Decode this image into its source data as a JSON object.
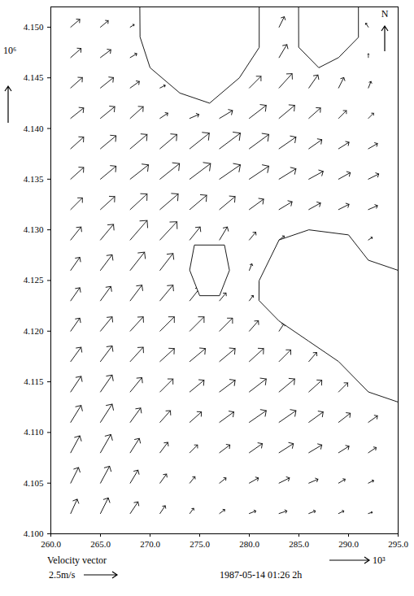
{
  "chart_data": {
    "type": "vector",
    "caption": "Velocity vector",
    "timestamp": "1987-05-14 01:26 2h",
    "x_label": "10³",
    "y_label": "10⁶",
    "north": "N",
    "reference": {
      "value": 2.5,
      "label": "2.5m/s"
    },
    "xlim": [
      260,
      295
    ],
    "xticks": [
      {
        "value": 260,
        "label": "260.0"
      },
      {
        "value": 265,
        "label": "265.0"
      },
      {
        "value": 270,
        "label": "270.0"
      },
      {
        "value": 275,
        "label": "275.0"
      },
      {
        "value": 280,
        "label": "280.0"
      },
      {
        "value": 285,
        "label": "285.0"
      },
      {
        "value": 290,
        "label": "290.0"
      },
      {
        "value": 295,
        "label": "295.0"
      }
    ],
    "ylim": [
      4.1,
      4.152
    ],
    "yticks": [
      {
        "value": 4.1,
        "label": "4.100"
      },
      {
        "value": 4.105,
        "label": "4.105"
      },
      {
        "value": 4.11,
        "label": "4.110"
      },
      {
        "value": 4.115,
        "label": "4.115"
      },
      {
        "value": 4.12,
        "label": "4.120"
      },
      {
        "value": 4.125,
        "label": "4.125"
      },
      {
        "value": 4.13,
        "label": "4.130"
      },
      {
        "value": 4.135,
        "label": "4.135"
      },
      {
        "value": 4.14,
        "label": "4.140"
      },
      {
        "value": 4.145,
        "label": "4.145"
      },
      {
        "value": 4.15,
        "label": "4.150"
      }
    ],
    "land": [
      [
        [
          269,
          4.152
        ],
        [
          281,
          4.152
        ],
        [
          281,
          4.148
        ],
        [
          279,
          4.145
        ],
        [
          276,
          4.1425
        ],
        [
          273,
          4.1435
        ],
        [
          270,
          4.146
        ],
        [
          269,
          4.149
        ]
      ],
      [
        [
          285,
          4.152
        ],
        [
          291,
          4.152
        ],
        [
          291,
          4.149
        ],
        [
          289,
          4.147
        ],
        [
          287,
          4.146
        ],
        [
          285,
          4.148
        ]
      ],
      [
        [
          274.5,
          4.1285
        ],
        [
          277.5,
          4.1285
        ],
        [
          278,
          4.126
        ],
        [
          277,
          4.1235
        ],
        [
          275,
          4.1235
        ],
        [
          274,
          4.126
        ]
      ],
      [
        [
          281,
          4.125
        ],
        [
          283,
          4.129
        ],
        [
          286,
          4.13
        ],
        [
          290,
          4.1295
        ],
        [
          292,
          4.127
        ],
        [
          295,
          4.126
        ],
        [
          295,
          4.113
        ],
        [
          292,
          4.114
        ],
        [
          289,
          4.117
        ],
        [
          286,
          4.119
        ],
        [
          283,
          4.121
        ],
        [
          281,
          4.123
        ]
      ]
    ],
    "vectors": [
      {
        "x": 262,
        "y": 4.102,
        "u": 0.5,
        "v": 1.1
      },
      {
        "x": 265,
        "y": 4.102,
        "u": 0.6,
        "v": 1.2
      },
      {
        "x": 268,
        "y": 4.102,
        "u": 0.6,
        "v": 0.9
      },
      {
        "x": 271,
        "y": 4.102,
        "u": 0.4,
        "v": 0.6
      },
      {
        "x": 274,
        "y": 4.102,
        "u": 0.3,
        "v": 0.4
      },
      {
        "x": 277,
        "y": 4.102,
        "u": 0.4,
        "v": 0.3
      },
      {
        "x": 280,
        "y": 4.102,
        "u": 0.5,
        "v": 0.2
      },
      {
        "x": 283,
        "y": 4.102,
        "u": 0.6,
        "v": 0.2
      },
      {
        "x": 286,
        "y": 4.102,
        "u": 0.5,
        "v": 0.2
      },
      {
        "x": 289,
        "y": 4.102,
        "u": 0.4,
        "v": 0.2
      },
      {
        "x": 292,
        "y": 4.102,
        "u": 0.3,
        "v": 0.1
      },
      {
        "x": 262,
        "y": 4.105,
        "u": 0.6,
        "v": 1.2
      },
      {
        "x": 265,
        "y": 4.105,
        "u": 0.7,
        "v": 1.3
      },
      {
        "x": 268,
        "y": 4.105,
        "u": 0.6,
        "v": 1.0
      },
      {
        "x": 271,
        "y": 4.105,
        "u": 0.5,
        "v": 0.7
      },
      {
        "x": 274,
        "y": 4.105,
        "u": 0.4,
        "v": 0.5
      },
      {
        "x": 277,
        "y": 4.105,
        "u": 0.5,
        "v": 0.4
      },
      {
        "x": 280,
        "y": 4.105,
        "u": 0.7,
        "v": 0.4
      },
      {
        "x": 283,
        "y": 4.105,
        "u": 0.8,
        "v": 0.4
      },
      {
        "x": 286,
        "y": 4.105,
        "u": 0.7,
        "v": 0.3
      },
      {
        "x": 289,
        "y": 4.105,
        "u": 0.5,
        "v": 0.3
      },
      {
        "x": 292,
        "y": 4.105,
        "u": 0.4,
        "v": 0.2
      },
      {
        "x": 262,
        "y": 4.108,
        "u": 0.7,
        "v": 1.3
      },
      {
        "x": 265,
        "y": 4.108,
        "u": 0.8,
        "v": 1.4
      },
      {
        "x": 268,
        "y": 4.108,
        "u": 0.7,
        "v": 1.1
      },
      {
        "x": 271,
        "y": 4.108,
        "u": 0.6,
        "v": 0.8
      },
      {
        "x": 274,
        "y": 4.108,
        "u": 0.6,
        "v": 0.6
      },
      {
        "x": 277,
        "y": 4.108,
        "u": 0.8,
        "v": 0.6
      },
      {
        "x": 280,
        "y": 4.108,
        "u": 1.0,
        "v": 0.7
      },
      {
        "x": 283,
        "y": 4.108,
        "u": 1.1,
        "v": 0.7
      },
      {
        "x": 286,
        "y": 4.108,
        "u": 1.0,
        "v": 0.6
      },
      {
        "x": 289,
        "y": 4.108,
        "u": 0.8,
        "v": 0.5
      },
      {
        "x": 292,
        "y": 4.108,
        "u": 0.6,
        "v": 0.4
      },
      {
        "x": 262,
        "y": 4.111,
        "u": 0.8,
        "v": 1.3
      },
      {
        "x": 265,
        "y": 4.111,
        "u": 0.9,
        "v": 1.4
      },
      {
        "x": 268,
        "y": 4.111,
        "u": 0.8,
        "v": 1.1
      },
      {
        "x": 271,
        "y": 4.111,
        "u": 0.8,
        "v": 0.9
      },
      {
        "x": 274,
        "y": 4.111,
        "u": 0.9,
        "v": 0.8
      },
      {
        "x": 277,
        "y": 4.111,
        "u": 1.1,
        "v": 0.8
      },
      {
        "x": 280,
        "y": 4.111,
        "u": 1.3,
        "v": 0.9
      },
      {
        "x": 283,
        "y": 4.111,
        "u": 1.3,
        "v": 0.9
      },
      {
        "x": 286,
        "y": 4.111,
        "u": 1.1,
        "v": 0.8
      },
      {
        "x": 289,
        "y": 4.111,
        "u": 0.9,
        "v": 0.7
      },
      {
        "x": 292,
        "y": 4.111,
        "u": 0.7,
        "v": 0.5
      },
      {
        "x": 262,
        "y": 4.114,
        "u": 0.8,
        "v": 1.2
      },
      {
        "x": 265,
        "y": 4.114,
        "u": 0.9,
        "v": 1.3
      },
      {
        "x": 268,
        "y": 4.114,
        "u": 0.9,
        "v": 1.1
      },
      {
        "x": 271,
        "y": 4.114,
        "u": 1.0,
        "v": 1.0
      },
      {
        "x": 274,
        "y": 4.114,
        "u": 1.1,
        "v": 0.9
      },
      {
        "x": 277,
        "y": 4.114,
        "u": 1.2,
        "v": 0.9
      },
      {
        "x": 280,
        "y": 4.114,
        "u": 1.3,
        "v": 1.0
      },
      {
        "x": 283,
        "y": 4.114,
        "u": 1.2,
        "v": 1.0
      },
      {
        "x": 286,
        "y": 4.114,
        "u": 1.0,
        "v": 0.9
      },
      {
        "x": 289,
        "y": 4.114,
        "u": 0.7,
        "v": 0.7
      },
      {
        "x": 262,
        "y": 4.117,
        "u": 0.8,
        "v": 1.1
      },
      {
        "x": 265,
        "y": 4.117,
        "u": 0.9,
        "v": 1.2
      },
      {
        "x": 268,
        "y": 4.117,
        "u": 1.0,
        "v": 1.1
      },
      {
        "x": 271,
        "y": 4.117,
        "u": 1.1,
        "v": 1.0
      },
      {
        "x": 274,
        "y": 4.117,
        "u": 1.2,
        "v": 1.0
      },
      {
        "x": 277,
        "y": 4.117,
        "u": 1.2,
        "v": 1.0
      },
      {
        "x": 280,
        "y": 4.117,
        "u": 1.1,
        "v": 1.0
      },
      {
        "x": 283,
        "y": 4.117,
        "u": 0.9,
        "v": 0.9
      },
      {
        "x": 286,
        "y": 4.117,
        "u": 0.6,
        "v": 0.7
      },
      {
        "x": 262,
        "y": 4.12,
        "u": 0.7,
        "v": 1.0
      },
      {
        "x": 265,
        "y": 4.12,
        "u": 0.9,
        "v": 1.1
      },
      {
        "x": 268,
        "y": 4.12,
        "u": 1.0,
        "v": 1.1
      },
      {
        "x": 271,
        "y": 4.12,
        "u": 1.1,
        "v": 1.1
      },
      {
        "x": 274,
        "y": 4.12,
        "u": 1.1,
        "v": 1.1
      },
      {
        "x": 277,
        "y": 4.12,
        "u": 1.0,
        "v": 1.0
      },
      {
        "x": 280,
        "y": 4.12,
        "u": 0.7,
        "v": 0.8
      },
      {
        "x": 283,
        "y": 4.12,
        "u": 0.4,
        "v": 0.6
      },
      {
        "x": 262,
        "y": 4.123,
        "u": 0.7,
        "v": 1.0
      },
      {
        "x": 265,
        "y": 4.123,
        "u": 0.8,
        "v": 1.1
      },
      {
        "x": 268,
        "y": 4.123,
        "u": 0.9,
        "v": 1.2
      },
      {
        "x": 271,
        "y": 4.123,
        "u": 1.0,
        "v": 1.2
      },
      {
        "x": 274,
        "y": 4.123,
        "u": 0.8,
        "v": 1.0
      },
      {
        "x": 277,
        "y": 4.123,
        "u": 0.5,
        "v": 0.6
      },
      {
        "x": 280,
        "y": 4.123,
        "u": 0.3,
        "v": 0.4
      },
      {
        "x": 262,
        "y": 4.126,
        "u": 0.7,
        "v": 1.0
      },
      {
        "x": 265,
        "y": 4.126,
        "u": 0.9,
        "v": 1.2
      },
      {
        "x": 268,
        "y": 4.126,
        "u": 1.1,
        "v": 1.4
      },
      {
        "x": 271,
        "y": 4.126,
        "u": 1.0,
        "v": 1.3
      },
      {
        "x": 280,
        "y": 4.126,
        "u": 0.2,
        "v": 0.5
      },
      {
        "x": 262,
        "y": 4.129,
        "u": 0.8,
        "v": 1.0
      },
      {
        "x": 265,
        "y": 4.129,
        "u": 1.0,
        "v": 1.2
      },
      {
        "x": 268,
        "y": 4.129,
        "u": 1.3,
        "v": 1.5
      },
      {
        "x": 271,
        "y": 4.129,
        "u": 1.3,
        "v": 1.4
      },
      {
        "x": 274,
        "y": 4.129,
        "u": 0.8,
        "v": 1.0
      },
      {
        "x": 277,
        "y": 4.129,
        "u": 0.6,
        "v": 1.0
      },
      {
        "x": 280,
        "y": 4.129,
        "u": 0.5,
        "v": 0.6
      },
      {
        "x": 283,
        "y": 4.129,
        "u": 0.4,
        "v": 0.3
      },
      {
        "x": 292,
        "y": 4.129,
        "u": 0.3,
        "v": 0.2
      },
      {
        "x": 262,
        "y": 4.132,
        "u": 0.9,
        "v": 0.9
      },
      {
        "x": 265,
        "y": 4.132,
        "u": 1.1,
        "v": 1.0
      },
      {
        "x": 268,
        "y": 4.132,
        "u": 1.3,
        "v": 1.2
      },
      {
        "x": 271,
        "y": 4.132,
        "u": 1.4,
        "v": 1.2
      },
      {
        "x": 274,
        "y": 4.132,
        "u": 1.3,
        "v": 1.1
      },
      {
        "x": 277,
        "y": 4.132,
        "u": 1.2,
        "v": 1.0
      },
      {
        "x": 280,
        "y": 4.132,
        "u": 1.1,
        "v": 0.8
      },
      {
        "x": 283,
        "y": 4.132,
        "u": 1.0,
        "v": 0.6
      },
      {
        "x": 286,
        "y": 4.132,
        "u": 0.9,
        "v": 0.5
      },
      {
        "x": 289,
        "y": 4.132,
        "u": 0.8,
        "v": 0.4
      },
      {
        "x": 292,
        "y": 4.132,
        "u": 0.7,
        "v": 0.3
      },
      {
        "x": 262,
        "y": 4.135,
        "u": 1.0,
        "v": 0.9
      },
      {
        "x": 265,
        "y": 4.135,
        "u": 1.2,
        "v": 1.0
      },
      {
        "x": 268,
        "y": 4.135,
        "u": 1.4,
        "v": 1.1
      },
      {
        "x": 271,
        "y": 4.135,
        "u": 1.5,
        "v": 1.2
      },
      {
        "x": 274,
        "y": 4.135,
        "u": 1.6,
        "v": 1.2
      },
      {
        "x": 277,
        "y": 4.135,
        "u": 1.6,
        "v": 1.1
      },
      {
        "x": 280,
        "y": 4.135,
        "u": 1.5,
        "v": 1.0
      },
      {
        "x": 283,
        "y": 4.135,
        "u": 1.3,
        "v": 0.8
      },
      {
        "x": 286,
        "y": 4.135,
        "u": 1.1,
        "v": 0.6
      },
      {
        "x": 289,
        "y": 4.135,
        "u": 0.9,
        "v": 0.5
      },
      {
        "x": 292,
        "y": 4.135,
        "u": 0.8,
        "v": 0.4
      },
      {
        "x": 262,
        "y": 4.138,
        "u": 1.0,
        "v": 0.9
      },
      {
        "x": 265,
        "y": 4.138,
        "u": 1.2,
        "v": 1.0
      },
      {
        "x": 268,
        "y": 4.138,
        "u": 1.3,
        "v": 1.1
      },
      {
        "x": 271,
        "y": 4.138,
        "u": 1.3,
        "v": 1.1
      },
      {
        "x": 274,
        "y": 4.138,
        "u": 1.5,
        "v": 1.2
      },
      {
        "x": 277,
        "y": 4.138,
        "u": 1.6,
        "v": 1.2
      },
      {
        "x": 280,
        "y": 4.138,
        "u": 1.5,
        "v": 1.1
      },
      {
        "x": 283,
        "y": 4.138,
        "u": 1.3,
        "v": 0.9
      },
      {
        "x": 286,
        "y": 4.138,
        "u": 1.0,
        "v": 0.7
      },
      {
        "x": 289,
        "y": 4.138,
        "u": 0.8,
        "v": 0.5
      },
      {
        "x": 292,
        "y": 4.138,
        "u": 0.7,
        "v": 0.4
      },
      {
        "x": 262,
        "y": 4.141,
        "u": 1.0,
        "v": 0.8
      },
      {
        "x": 265,
        "y": 4.141,
        "u": 1.1,
        "v": 0.9
      },
      {
        "x": 268,
        "y": 4.141,
        "u": 1.0,
        "v": 0.9
      },
      {
        "x": 271,
        "y": 4.141,
        "u": 0.6,
        "v": 0.4
      },
      {
        "x": 274,
        "y": 4.141,
        "u": 0.7,
        "v": 0.3
      },
      {
        "x": 277,
        "y": 4.141,
        "u": 1.0,
        "v": 0.6
      },
      {
        "x": 280,
        "y": 4.141,
        "u": 1.3,
        "v": 1.0
      },
      {
        "x": 283,
        "y": 4.141,
        "u": 1.2,
        "v": 1.0
      },
      {
        "x": 286,
        "y": 4.141,
        "u": 0.9,
        "v": 0.8
      },
      {
        "x": 289,
        "y": 4.141,
        "u": 0.6,
        "v": 0.6
      },
      {
        "x": 292,
        "y": 4.141,
        "u": 0.4,
        "v": 0.4
      },
      {
        "x": 262,
        "y": 4.144,
        "u": 0.9,
        "v": 0.8
      },
      {
        "x": 265,
        "y": 4.144,
        "u": 1.0,
        "v": 0.8
      },
      {
        "x": 268,
        "y": 4.144,
        "u": 0.7,
        "v": 0.5
      },
      {
        "x": 271,
        "y": 4.144,
        "u": 0.4,
        "v": 0.2
      },
      {
        "x": 280,
        "y": 4.144,
        "u": 0.9,
        "v": 0.9
      },
      {
        "x": 283,
        "y": 4.144,
        "u": 1.0,
        "v": 1.1
      },
      {
        "x": 286,
        "y": 4.144,
        "u": 0.7,
        "v": 1.0
      },
      {
        "x": 289,
        "y": 4.144,
        "u": 0.4,
        "v": 0.8
      },
      {
        "x": 292,
        "y": 4.144,
        "u": 0.2,
        "v": 0.5
      },
      {
        "x": 262,
        "y": 4.147,
        "u": 0.8,
        "v": 0.7
      },
      {
        "x": 265,
        "y": 4.147,
        "u": 0.8,
        "v": 0.6
      },
      {
        "x": 268,
        "y": 4.147,
        "u": 0.5,
        "v": 0.3
      },
      {
        "x": 283,
        "y": 4.147,
        "u": 0.6,
        "v": 1.0
      },
      {
        "x": 292,
        "y": 4.147,
        "u": 0.0,
        "v": 0.3
      },
      {
        "x": 262,
        "y": 4.15,
        "u": 0.7,
        "v": 0.6
      },
      {
        "x": 265,
        "y": 4.15,
        "u": 0.6,
        "v": 0.5
      },
      {
        "x": 268,
        "y": 4.15,
        "u": 0.3,
        "v": 0.2
      },
      {
        "x": 283,
        "y": 4.15,
        "u": 0.4,
        "v": 0.8
      },
      {
        "x": 292,
        "y": 4.15,
        "u": -0.2,
        "v": 0.3
      }
    ]
  }
}
